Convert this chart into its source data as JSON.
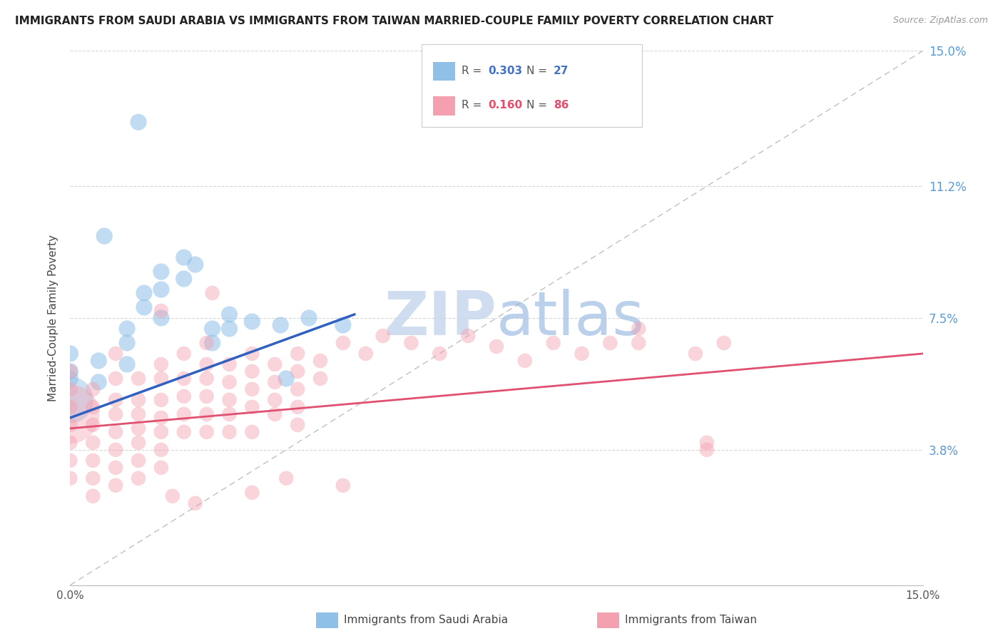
{
  "title": "IMMIGRANTS FROM SAUDI ARABIA VS IMMIGRANTS FROM TAIWAN MARRIED-COUPLE FAMILY POVERTY CORRELATION CHART",
  "source": "Source: ZipAtlas.com",
  "ylabel": "Married-Couple Family Poverty",
  "xmin": 0.0,
  "xmax": 0.15,
  "ymin": 0.0,
  "ymax": 0.15,
  "yticks": [
    0.0,
    0.038,
    0.075,
    0.112,
    0.15
  ],
  "ytick_labels": [
    "",
    "3.8%",
    "7.5%",
    "11.2%",
    "15.0%"
  ],
  "color_saudi": "#8fc0e8",
  "color_taiwan": "#f4a0b0",
  "color_trendline_saudi": "#3060c0",
  "color_trendline_taiwan": "#e05070",
  "watermark_color": "#c8d8ee",
  "saudi_trendline": [
    [
      0.0,
      0.047
    ],
    [
      0.05,
      0.076
    ]
  ],
  "taiwan_trendline": [
    [
      0.0,
      0.044
    ],
    [
      0.15,
      0.065
    ]
  ],
  "saudi_points": [
    [
      0.0,
      0.06
    ],
    [
      0.0,
      0.065
    ],
    [
      0.0,
      0.058
    ],
    [
      0.005,
      0.063
    ],
    [
      0.005,
      0.057
    ],
    [
      0.01,
      0.072
    ],
    [
      0.01,
      0.068
    ],
    [
      0.01,
      0.062
    ],
    [
      0.013,
      0.082
    ],
    [
      0.013,
      0.078
    ],
    [
      0.016,
      0.088
    ],
    [
      0.016,
      0.083
    ],
    [
      0.016,
      0.075
    ],
    [
      0.02,
      0.092
    ],
    [
      0.02,
      0.086
    ],
    [
      0.022,
      0.09
    ],
    [
      0.025,
      0.072
    ],
    [
      0.025,
      0.068
    ],
    [
      0.028,
      0.076
    ],
    [
      0.028,
      0.072
    ],
    [
      0.032,
      0.074
    ],
    [
      0.037,
      0.073
    ],
    [
      0.042,
      0.075
    ],
    [
      0.048,
      0.073
    ],
    [
      0.012,
      0.13
    ],
    [
      0.006,
      0.098
    ],
    [
      0.038,
      0.058
    ]
  ],
  "taiwan_points": [
    [
      0.0,
      0.06
    ],
    [
      0.0,
      0.055
    ],
    [
      0.0,
      0.05
    ],
    [
      0.0,
      0.045
    ],
    [
      0.0,
      0.04
    ],
    [
      0.0,
      0.035
    ],
    [
      0.0,
      0.03
    ],
    [
      0.004,
      0.055
    ],
    [
      0.004,
      0.05
    ],
    [
      0.004,
      0.045
    ],
    [
      0.004,
      0.04
    ],
    [
      0.004,
      0.035
    ],
    [
      0.004,
      0.03
    ],
    [
      0.004,
      0.025
    ],
    [
      0.008,
      0.065
    ],
    [
      0.008,
      0.058
    ],
    [
      0.008,
      0.052
    ],
    [
      0.008,
      0.048
    ],
    [
      0.008,
      0.043
    ],
    [
      0.008,
      0.038
    ],
    [
      0.008,
      0.033
    ],
    [
      0.008,
      0.028
    ],
    [
      0.012,
      0.058
    ],
    [
      0.012,
      0.052
    ],
    [
      0.012,
      0.048
    ],
    [
      0.012,
      0.044
    ],
    [
      0.012,
      0.04
    ],
    [
      0.012,
      0.035
    ],
    [
      0.012,
      0.03
    ],
    [
      0.016,
      0.062
    ],
    [
      0.016,
      0.058
    ],
    [
      0.016,
      0.052
    ],
    [
      0.016,
      0.047
    ],
    [
      0.016,
      0.043
    ],
    [
      0.016,
      0.038
    ],
    [
      0.016,
      0.033
    ],
    [
      0.02,
      0.065
    ],
    [
      0.02,
      0.058
    ],
    [
      0.02,
      0.053
    ],
    [
      0.02,
      0.048
    ],
    [
      0.02,
      0.043
    ],
    [
      0.024,
      0.068
    ],
    [
      0.024,
      0.062
    ],
    [
      0.024,
      0.058
    ],
    [
      0.024,
      0.053
    ],
    [
      0.024,
      0.048
    ],
    [
      0.024,
      0.043
    ],
    [
      0.028,
      0.062
    ],
    [
      0.028,
      0.057
    ],
    [
      0.028,
      0.052
    ],
    [
      0.028,
      0.048
    ],
    [
      0.028,
      0.043
    ],
    [
      0.032,
      0.065
    ],
    [
      0.032,
      0.06
    ],
    [
      0.032,
      0.055
    ],
    [
      0.032,
      0.05
    ],
    [
      0.032,
      0.043
    ],
    [
      0.036,
      0.062
    ],
    [
      0.036,
      0.057
    ],
    [
      0.036,
      0.052
    ],
    [
      0.036,
      0.048
    ],
    [
      0.04,
      0.065
    ],
    [
      0.04,
      0.06
    ],
    [
      0.04,
      0.055
    ],
    [
      0.04,
      0.05
    ],
    [
      0.04,
      0.045
    ],
    [
      0.044,
      0.063
    ],
    [
      0.044,
      0.058
    ],
    [
      0.048,
      0.068
    ],
    [
      0.052,
      0.065
    ],
    [
      0.06,
      0.068
    ],
    [
      0.065,
      0.065
    ],
    [
      0.07,
      0.07
    ],
    [
      0.075,
      0.067
    ],
    [
      0.08,
      0.063
    ],
    [
      0.085,
      0.068
    ],
    [
      0.09,
      0.065
    ],
    [
      0.095,
      0.068
    ],
    [
      0.1,
      0.072
    ],
    [
      0.1,
      0.068
    ],
    [
      0.11,
      0.065
    ],
    [
      0.115,
      0.068
    ],
    [
      0.025,
      0.082
    ],
    [
      0.016,
      0.077
    ],
    [
      0.112,
      0.04
    ],
    [
      0.112,
      0.038
    ],
    [
      0.032,
      0.026
    ],
    [
      0.048,
      0.028
    ],
    [
      0.018,
      0.025
    ],
    [
      0.022,
      0.023
    ],
    [
      0.038,
      0.03
    ],
    [
      0.055,
      0.07
    ]
  ],
  "saudi_large_cluster": [
    0.0,
    0.052
  ],
  "taiwan_large_cluster": [
    0.0,
    0.048
  ]
}
